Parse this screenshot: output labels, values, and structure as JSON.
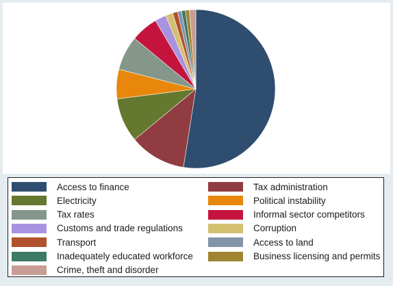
{
  "chart_data": {
    "type": "pie",
    "slices": [
      {
        "label": "Access to finance",
        "value": 52.5,
        "color": "#2f4d6e"
      },
      {
        "label": "Tax administration",
        "value": 11.5,
        "color": "#913c40"
      },
      {
        "label": "Electricity",
        "value": 9.0,
        "color": "#64782f"
      },
      {
        "label": "Political instability",
        "value": 6.0,
        "color": "#e8870c"
      },
      {
        "label": "Tax rates",
        "value": 7.0,
        "color": "#84978a"
      },
      {
        "label": "Informal sector competitors",
        "value": 5.5,
        "color": "#c4143e"
      },
      {
        "label": "Customs and trade regulations",
        "value": 2.3,
        "color": "#a893e0"
      },
      {
        "label": "Corruption",
        "value": 1.5,
        "color": "#d4c071"
      },
      {
        "label": "Transport",
        "value": 1.0,
        "color": "#b1522d"
      },
      {
        "label": "Access to land",
        "value": 0.8,
        "color": "#8393a9"
      },
      {
        "label": "Inadequately educated workforce",
        "value": 0.8,
        "color": "#3e7a68"
      },
      {
        "label": "Business licensing and permits",
        "value": 0.8,
        "color": "#a08432"
      },
      {
        "label": "Crime, theft and disorder",
        "value": 1.3,
        "color": "#c79d94"
      }
    ],
    "legend_position": "bottom",
    "legend_columns": 2
  }
}
